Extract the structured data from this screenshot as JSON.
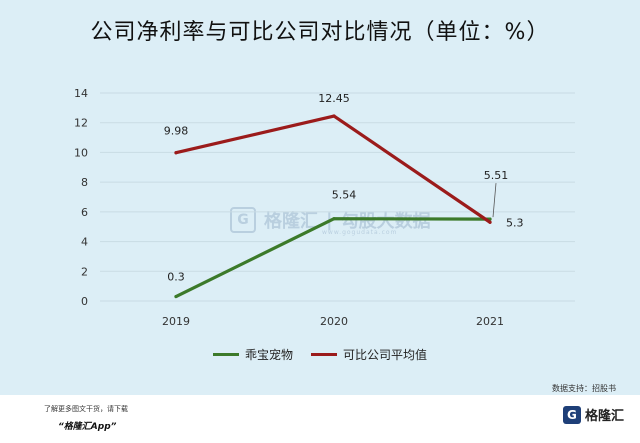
{
  "chart_data": {
    "type": "line",
    "title": "公司净利率与可比公司对比情况（单位：%）",
    "categories": [
      "2019",
      "2020",
      "2021"
    ],
    "ylim": [
      0,
      14
    ],
    "yticks": [
      0,
      2,
      4,
      6,
      8,
      10,
      12,
      14
    ],
    "grid": true,
    "legend_position": "bottom",
    "series": [
      {
        "name": "乖宝宠物",
        "values": [
          0.3,
          5.54,
          5.51
        ],
        "labels": [
          "0.3",
          "5.54",
          "5.51"
        ],
        "color": "#3c7a2a"
      },
      {
        "name": "可比公司平均值",
        "values": [
          9.98,
          12.45,
          5.3
        ],
        "labels": [
          "9.98",
          "12.45",
          "5.3"
        ],
        "color": "#9b1b1b"
      }
    ]
  },
  "source": "数据支持：招股书",
  "footer": {
    "note": "了解更多图文干货，请下载",
    "app": "“格隆汇App”",
    "logo_text": "格隆汇",
    "logo_icon": "G"
  },
  "watermark": {
    "icon": "G",
    "brand": "格隆汇",
    "brand2": "勾股大数据",
    "url": "www.gogudata.com"
  }
}
